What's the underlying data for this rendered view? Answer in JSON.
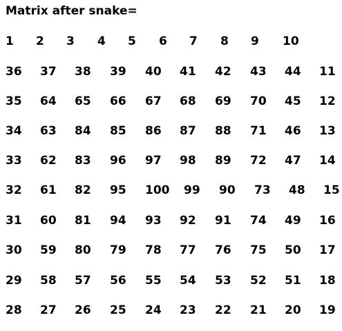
{
  "title": "Matrix after snake=",
  "matrix": [
    [
      "1",
      "2",
      "3",
      "4",
      "5",
      "6",
      "7",
      "8",
      "9",
      "10"
    ],
    [
      "36",
      "37",
      "38",
      "39",
      "40",
      "41",
      "42",
      "43",
      "44",
      "11"
    ],
    [
      "35",
      "64",
      "65",
      "66",
      "67",
      "68",
      "69",
      "70",
      "45",
      "12"
    ],
    [
      "34",
      "63",
      "84",
      "85",
      "86",
      "87",
      "88",
      "71",
      "46",
      "13"
    ],
    [
      "33",
      "62",
      "83",
      "96",
      "97",
      "98",
      "89",
      "72",
      "47",
      "14"
    ],
    [
      "32",
      "61",
      "82",
      "95",
      "100",
      "99",
      "90",
      "73",
      "48",
      "15"
    ],
    [
      "31",
      "60",
      "81",
      "94",
      "93",
      "92",
      "91",
      "74",
      "49",
      "16"
    ],
    [
      "30",
      "59",
      "80",
      "79",
      "78",
      "77",
      "76",
      "75",
      "50",
      "17"
    ],
    [
      "29",
      "58",
      "57",
      "56",
      "55",
      "54",
      "53",
      "52",
      "51",
      "18"
    ],
    [
      "28",
      "27",
      "26",
      "25",
      "24",
      "23",
      "22",
      "21",
      "20",
      "19"
    ]
  ]
}
